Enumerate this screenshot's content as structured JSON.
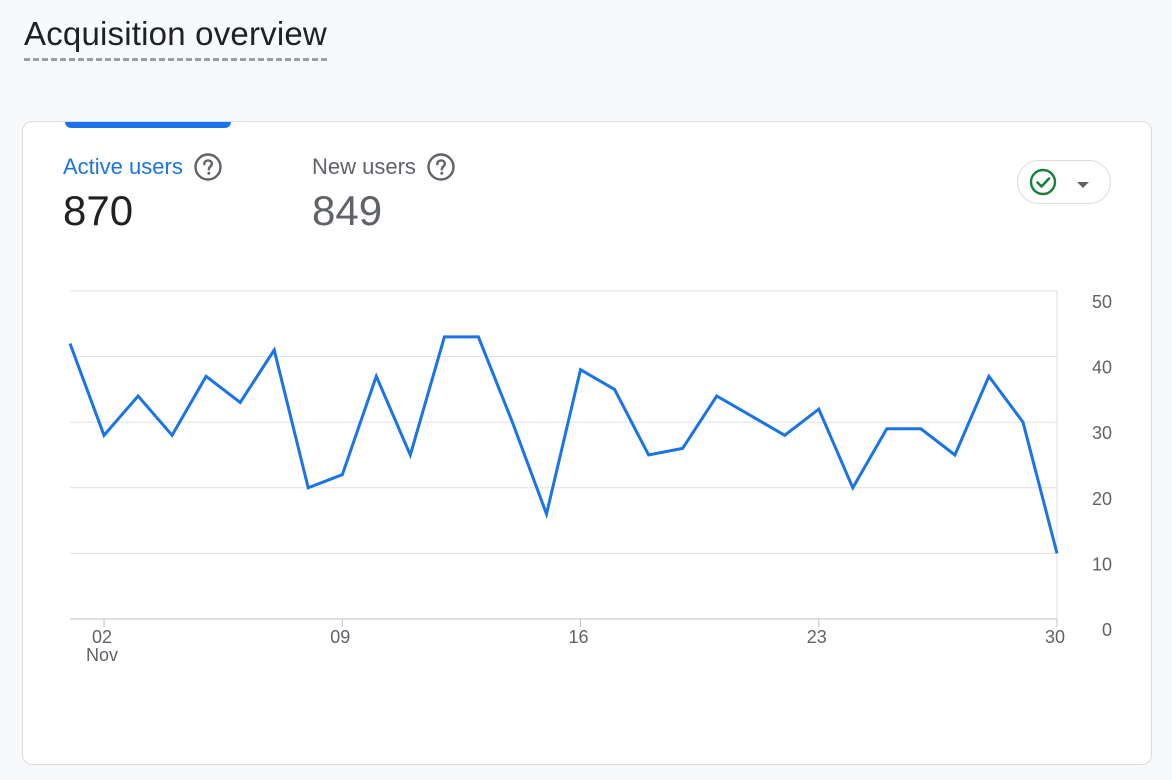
{
  "page": {
    "title": "Acquisition overview"
  },
  "metrics": {
    "active_users": {
      "label": "Active users",
      "value": "870"
    },
    "new_users": {
      "label": "New users",
      "value": "849"
    }
  },
  "icons": {
    "help": "help-circle-icon",
    "compare": "check-circle-icon",
    "dropdown": "caret-down-icon"
  },
  "colors": {
    "accent": "#1a73e8",
    "line": "#1a73e8",
    "check": "#188038",
    "grid": "#e0e0e0"
  },
  "chart_data": {
    "type": "line",
    "x": [
      "Nov 1",
      "Nov 2",
      "Nov 3",
      "Nov 4",
      "Nov 5",
      "Nov 6",
      "Nov 7",
      "Nov 8",
      "Nov 9",
      "Nov 10",
      "Nov 11",
      "Nov 12",
      "Nov 13",
      "Nov 14",
      "Nov 15",
      "Nov 16",
      "Nov 17",
      "Nov 18",
      "Nov 19",
      "Nov 20",
      "Nov 21",
      "Nov 22",
      "Nov 23",
      "Nov 24",
      "Nov 25",
      "Nov 26",
      "Nov 27",
      "Nov 28",
      "Nov 29",
      "Nov 30"
    ],
    "series": [
      {
        "values": [
          42,
          28,
          34,
          28,
          37,
          33,
          41,
          20,
          22,
          37,
          25,
          43,
          43,
          30,
          16,
          38,
          35,
          25,
          26,
          34,
          31,
          28,
          32,
          20,
          29,
          29,
          25,
          37,
          30,
          10
        ]
      }
    ],
    "x_ticks": [
      {
        "index": 1,
        "label": "02",
        "sublabel": "Nov"
      },
      {
        "index": 8,
        "label": "09",
        "sublabel": ""
      },
      {
        "index": 15,
        "label": "16",
        "sublabel": ""
      },
      {
        "index": 22,
        "label": "23",
        "sublabel": ""
      },
      {
        "index": 29,
        "label": "30",
        "sublabel": ""
      }
    ],
    "y_ticks": [
      "0",
      "10",
      "20",
      "30",
      "40",
      "50"
    ],
    "ylim": [
      0,
      50
    ],
    "y_axis_side": "right",
    "grid": true
  }
}
